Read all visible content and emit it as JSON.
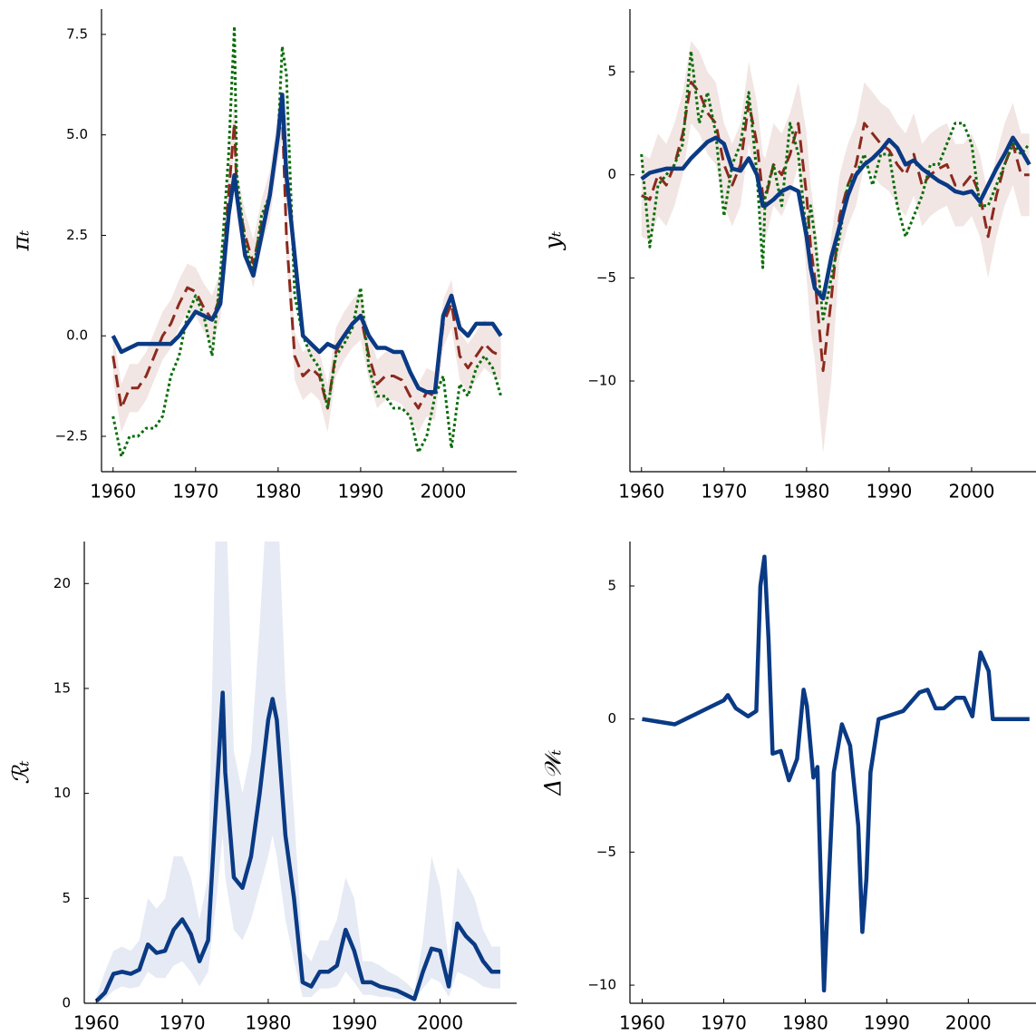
{
  "chart_data": [
    {
      "type": "line",
      "ylabel": "πₜ",
      "x": [
        1960,
        1961,
        1962,
        1963,
        1964,
        1965,
        1966,
        1967,
        1968,
        1969,
        1970,
        1971,
        1972,
        1973,
        1974,
        1974.7,
        1975,
        1976,
        1977,
        1978,
        1979,
        1980,
        1980.5,
        1981,
        1982,
        1983,
        1984,
        1985,
        1986,
        1987,
        1988,
        1989,
        1990,
        1991,
        1992,
        1993,
        1994,
        1995,
        1996,
        1997,
        1998,
        1999,
        2000,
        2001,
        2002,
        2003,
        2004,
        2005,
        2006,
        2007
      ],
      "xlim": [
        1958.6,
        2008.9
      ],
      "ylim": [
        -3.38,
        8.13
      ],
      "xticks": [
        1960,
        1970,
        1980,
        1990,
        2000
      ],
      "yticks": [
        {
          "value": -2.5,
          "label": "−2.5"
        },
        {
          "value": 0,
          "label": "0.0"
        },
        2.5,
        {
          "value": 5,
          "label": "5.0"
        },
        7.5
      ],
      "series": [
        {
          "color": "#8b2a1e",
          "style": "dashed",
          "band_color": "#f2e6e4",
          "values": [
            -0.5,
            -1.8,
            -1.3,
            -1.3,
            -1.0,
            -0.5,
            0.0,
            0.3,
            0.8,
            1.2,
            1.1,
            0.7,
            0.4,
            1.0,
            3.5,
            5.3,
            3.5,
            2.5,
            1.8,
            2.8,
            3.5,
            5.0,
            5.5,
            2.5,
            -0.5,
            -1.0,
            -0.8,
            -1.0,
            -1.8,
            -0.4,
            0.0,
            0.3,
            0.5,
            -0.5,
            -1.2,
            -1.0,
            -1.0,
            -1.1,
            -1.5,
            -1.8,
            -1.4,
            -1.5,
            0.3,
            0.8,
            -0.5,
            -0.8,
            -0.5,
            -0.2,
            -0.4,
            -0.5
          ],
          "lower": [
            -1.1,
            -2.4,
            -1.9,
            -1.9,
            -1.6,
            -1.1,
            -0.6,
            -0.3,
            0.2,
            0.6,
            0.5,
            0.1,
            -0.2,
            0.4,
            2.9,
            4.7,
            2.9,
            1.9,
            1.2,
            2.2,
            2.9,
            4.4,
            4.9,
            1.9,
            -1.1,
            -1.6,
            -1.4,
            -1.6,
            -2.4,
            -1.0,
            -0.6,
            -0.3,
            -0.1,
            -1.1,
            -1.8,
            -1.6,
            -1.6,
            -1.7,
            -2.1,
            -2.4,
            -2.0,
            -2.1,
            -0.3,
            0.2,
            -1.1,
            -1.4,
            -1.1,
            -0.8,
            -1.0,
            -1.1
          ],
          "upper": [
            0.1,
            -1.2,
            -0.7,
            -0.7,
            -0.4,
            0.1,
            0.6,
            0.9,
            1.4,
            1.8,
            1.7,
            1.3,
            1.0,
            1.6,
            4.1,
            5.9,
            4.1,
            3.1,
            2.4,
            3.4,
            4.1,
            5.6,
            6.1,
            3.1,
            0.1,
            -0.4,
            -0.2,
            -0.4,
            -1.2,
            0.2,
            0.6,
            0.9,
            1.1,
            0.1,
            -0.6,
            -0.4,
            -0.4,
            -0.5,
            -0.9,
            -1.2,
            -0.8,
            -0.9,
            0.9,
            1.4,
            0.1,
            -0.2,
            0.1,
            0.4,
            0.2,
            0.1
          ]
        },
        {
          "color": "#0a6e0a",
          "style": "dotted",
          "values": [
            -2.0,
            -3.0,
            -2.5,
            -2.5,
            -2.3,
            -2.3,
            -2.0,
            -1.0,
            -0.5,
            0.5,
            1.0,
            0.5,
            -0.5,
            1.5,
            4.5,
            7.7,
            4.0,
            2.3,
            1.6,
            3.0,
            3.5,
            5.0,
            7.2,
            6.5,
            1.0,
            0.0,
            -0.5,
            -0.8,
            -1.8,
            -0.5,
            -0.2,
            0.2,
            1.2,
            -0.8,
            -1.5,
            -1.5,
            -1.8,
            -1.8,
            -2.0,
            -2.9,
            -2.5,
            -1.5,
            -1.0,
            -2.8,
            -1.2,
            -1.5,
            -0.8,
            -0.5,
            -0.8,
            -1.5
          ]
        },
        {
          "color": "#0a3a84",
          "style": "solid",
          "values": [
            0,
            -0.4,
            -0.3,
            -0.2,
            -0.2,
            -0.2,
            -0.2,
            -0.2,
            0,
            0.3,
            0.6,
            0.5,
            0.4,
            0.8,
            3.0,
            4.0,
            3.5,
            2.0,
            1.5,
            2.5,
            3.5,
            5.0,
            6.0,
            4.0,
            2.0,
            0,
            -0.2,
            -0.4,
            -0.2,
            -0.3,
            0,
            0.3,
            0.5,
            0,
            -0.3,
            -0.3,
            -0.4,
            -0.4,
            -0.9,
            -1.3,
            -1.4,
            -1.4,
            0.5,
            1.0,
            0.2,
            0,
            0.3,
            0.3,
            0.3,
            0.0
          ]
        }
      ]
    },
    {
      "type": "line",
      "ylabel": "yₜ",
      "x": [
        1960,
        1961,
        1962,
        1963,
        1964,
        1965,
        1966,
        1967,
        1968,
        1969,
        1970,
        1971,
        1972,
        1973,
        1974,
        1974.7,
        1975,
        1976,
        1977,
        1978,
        1979,
        1980,
        1980.5,
        1981,
        1982,
        1983,
        1984,
        1985,
        1986,
        1987,
        1988,
        1989,
        1990,
        1991,
        1992,
        1993,
        1994,
        1995,
        1996,
        1997,
        1998,
        1999,
        2000,
        2001,
        2002,
        2003,
        2004,
        2005,
        2006,
        2007
      ],
      "xlim": [
        1958.6,
        2007.8
      ],
      "ylim": [
        -14.4,
        8.04
      ],
      "xticks": [
        1960,
        1970,
        1980,
        1990,
        2000
      ],
      "yticks": [
        {
          "value": -10,
          "label": "−10"
        },
        {
          "value": -5,
          "label": "−5"
        },
        0,
        5
      ],
      "series": [
        {
          "color": "#8b2a1e",
          "style": "dashed",
          "band_color": "#f2e6e4",
          "values": [
            -1.0,
            -1.2,
            0,
            -0.5,
            0.5,
            2.0,
            4.5,
            4.0,
            3.0,
            2.5,
            0.5,
            -0.5,
            0.5,
            3.5,
            1.5,
            -1.0,
            -1.2,
            0.5,
            0.0,
            1.0,
            2.5,
            -1.0,
            -3.5,
            -5.0,
            -9.5,
            -6.0,
            -2.0,
            -0.5,
            0.5,
            2.5,
            2.0,
            1.5,
            1.2,
            0.5,
            0.0,
            1.0,
            -0.5,
            0.0,
            0.3,
            0.5,
            -0.5,
            -0.5,
            0.0,
            -1.0,
            -3.0,
            -1.0,
            0.5,
            1.5,
            0.0,
            0.0
          ],
          "lower": [
            -3.0,
            -3.2,
            -2.0,
            -2.5,
            -1.5,
            0.0,
            2.5,
            2.0,
            1.0,
            0.5,
            -1.5,
            -2.5,
            -1.5,
            1.5,
            -0.5,
            -3.0,
            -3.2,
            -1.5,
            -2.0,
            -1.0,
            0.5,
            -5.0,
            -7.5,
            -9.0,
            -13.5,
            -10.0,
            -4.0,
            -2.5,
            -1.5,
            0.5,
            0.0,
            -0.5,
            -0.8,
            -1.5,
            -2.0,
            -1.0,
            -2.5,
            -2.0,
            -1.7,
            -1.5,
            -2.5,
            -2.5,
            -2.0,
            -3.0,
            -5.0,
            -3.0,
            -1.5,
            -0.5,
            -2.0,
            -2.0
          ],
          "upper": [
            1.0,
            0.8,
            2.0,
            1.5,
            2.5,
            4.0,
            6.5,
            6.0,
            5.0,
            4.5,
            2.5,
            1.5,
            2.5,
            5.5,
            3.5,
            1.0,
            0.8,
            2.5,
            2.0,
            3.0,
            4.5,
            2.0,
            -0.5,
            -2.0,
            -6.5,
            -3.0,
            0.0,
            1.5,
            2.5,
            4.5,
            4.0,
            3.5,
            3.2,
            2.5,
            2.0,
            3.0,
            1.5,
            2.0,
            2.3,
            2.5,
            1.5,
            1.5,
            2.0,
            1.0,
            -1.0,
            1.0,
            2.5,
            3.5,
            2.0,
            2.0
          ]
        },
        {
          "color": "#0a6e0a",
          "style": "dotted",
          "values": [
            1.0,
            -3.5,
            -0.5,
            0.0,
            0.5,
            1.5,
            6.0,
            2.5,
            4.0,
            2.0,
            -2.0,
            0.5,
            1.5,
            4.0,
            0.0,
            -4.5,
            -1.0,
            0.5,
            -1.5,
            2.5,
            1.0,
            -3.0,
            -1.5,
            -3.0,
            -7.0,
            -5.0,
            -3.0,
            -0.5,
            0.0,
            1.0,
            -0.5,
            1.0,
            1.0,
            -1.5,
            -3.0,
            -2.0,
            -1.0,
            0.5,
            0.5,
            1.5,
            2.5,
            2.5,
            1.5,
            -1.5,
            -1.5,
            -0.5,
            0.5,
            1.5,
            1.0,
            1.5
          ]
        },
        {
          "color": "#0a3a84",
          "style": "solid",
          "values": [
            -0.2,
            0.1,
            0.2,
            0.3,
            0.3,
            0.3,
            0.8,
            1.2,
            1.6,
            1.8,
            1.5,
            0.3,
            0.2,
            0.8,
            0.0,
            -1.5,
            -1.5,
            -1.2,
            -0.8,
            -0.6,
            -0.8,
            -3.0,
            -4.5,
            -5.5,
            -6.0,
            -4.0,
            -2.5,
            -1.0,
            0.0,
            0.5,
            0.8,
            1.2,
            1.7,
            1.3,
            0.5,
            0.7,
            0.3,
            0.0,
            -0.3,
            -0.5,
            -0.8,
            -0.9,
            -0.8,
            -1.3,
            -0.5,
            0.3,
            1.0,
            1.8,
            1.2,
            0.5
          ]
        }
      ]
    },
    {
      "type": "line",
      "ylabel": "ℛₜ",
      "x": [
        1960,
        1961,
        1962,
        1963,
        1964,
        1965,
        1966,
        1967,
        1968,
        1969,
        1970,
        1971,
        1972,
        1973,
        1974,
        1974.7,
        1975,
        1976,
        1977,
        1978,
        1979,
        1980,
        1980.5,
        1981,
        1982,
        1983,
        1984,
        1985,
        1986,
        1987,
        1988,
        1989,
        1990,
        1991,
        1992,
        1993,
        1994,
        1995,
        1996,
        1997,
        1998,
        1999,
        2000,
        2001,
        2002,
        2003,
        2004,
        2005,
        2006,
        2007
      ],
      "xlim": [
        1958.6,
        2008.9
      ],
      "ylim": [
        0,
        22
      ],
      "xticks": [
        1960,
        1970,
        1980,
        1990,
        2000
      ],
      "yticks": [
        0,
        5,
        10,
        15,
        20
      ],
      "series": [
        {
          "color": "#0a3a84",
          "style": "solid",
          "band_color": "#e6eaf4",
          "values": [
            0.1,
            0.5,
            1.4,
            1.5,
            1.4,
            1.6,
            2.8,
            2.4,
            2.5,
            3.5,
            4.0,
            3.3,
            2.0,
            3.0,
            10.0,
            14.8,
            11.0,
            6.0,
            5.5,
            7.0,
            10.0,
            13.5,
            14.5,
            13.5,
            8.0,
            5.0,
            1.0,
            0.8,
            1.5,
            1.5,
            1.8,
            3.5,
            2.5,
            1.0,
            1.0,
            0.8,
            0.7,
            0.6,
            0.4,
            0.2,
            1.5,
            2.6,
            2.5,
            0.8,
            3.8,
            3.2,
            2.8,
            2.0,
            1.5,
            1.5
          ],
          "lower": [
            0,
            0.2,
            0.6,
            0.8,
            0.7,
            0.8,
            1.5,
            1.2,
            1.2,
            1.8,
            2.0,
            1.5,
            0.8,
            1.5,
            5.0,
            8,
            6.0,
            3.5,
            3.0,
            4.0,
            5.5,
            7.0,
            8.0,
            7.0,
            4.0,
            2.0,
            0.3,
            0.3,
            0.7,
            0.7,
            0.8,
            1.5,
            1.0,
            0.4,
            0.4,
            0.3,
            0.3,
            0.2,
            0.2,
            0.1,
            0.7,
            1.2,
            1.0,
            0.3,
            1.5,
            1.3,
            1.1,
            0.8,
            0.7,
            0.7
          ],
          "upper": [
            0.3,
            1.5,
            2.5,
            2.7,
            2.5,
            3.0,
            5.0,
            4.5,
            5.0,
            7.0,
            7.0,
            6.0,
            4.0,
            6.0,
            25,
            25,
            25,
            12,
            10,
            12,
            18,
            25,
            25,
            25,
            15,
            9,
            2.5,
            2.0,
            3.0,
            3.0,
            4.0,
            6.0,
            5.0,
            2.0,
            2.0,
            1.8,
            1.5,
            1.3,
            1.0,
            0.6,
            3.0,
            7.0,
            5.5,
            2.0,
            6.5,
            5.8,
            5.0,
            3.5,
            2.7,
            2.7
          ]
        }
      ]
    },
    {
      "type": "line",
      "ylabel": "Δ𝒲ₜ",
      "x": [
        1960,
        1962,
        1964,
        1966,
        1968,
        1970,
        1970.5,
        1971.5,
        1973,
        1974,
        1974.5,
        1975,
        1975.5,
        1976,
        1977,
        1978,
        1979,
        1979.8,
        1980.2,
        1981,
        1981.5,
        1982,
        1982.3,
        1982.6,
        1983.5,
        1984.5,
        1985.5,
        1986.5,
        1987,
        1987.5,
        1988,
        1989,
        1990,
        1992,
        1994,
        1995,
        1996,
        1997,
        1998.5,
        1999.5,
        2000.5,
        2001.5,
        2002.5,
        2003,
        2005,
        2007.5
      ],
      "xlim": [
        1958.5,
        2008.3
      ],
      "ylim": [
        -10.68,
        6.67
      ],
      "xticks": [
        1960,
        1970,
        1980,
        1990,
        2000
      ],
      "yticks": [
        {
          "value": -10,
          "label": "−10"
        },
        {
          "value": -5,
          "label": "−5"
        },
        0,
        5
      ],
      "series": [
        {
          "color": "#0a3a84",
          "style": "solid",
          "values": [
            0,
            -0.1,
            -0.2,
            0.1,
            0.4,
            0.7,
            0.9,
            0.4,
            0.1,
            0.3,
            5.0,
            6.1,
            3.0,
            -1.3,
            -1.2,
            -2.3,
            -1.5,
            1.1,
            0.5,
            -2.2,
            -1.8,
            -7.0,
            -10.2,
            -8.0,
            -2.0,
            -0.2,
            -1.0,
            -4.0,
            -8.0,
            -6.0,
            -2.0,
            0.0,
            0.1,
            0.3,
            1.0,
            1.1,
            0.4,
            0.4,
            0.8,
            0.8,
            0.1,
            2.5,
            1.8,
            0.0,
            0.0,
            0.0
          ]
        }
      ]
    }
  ]
}
